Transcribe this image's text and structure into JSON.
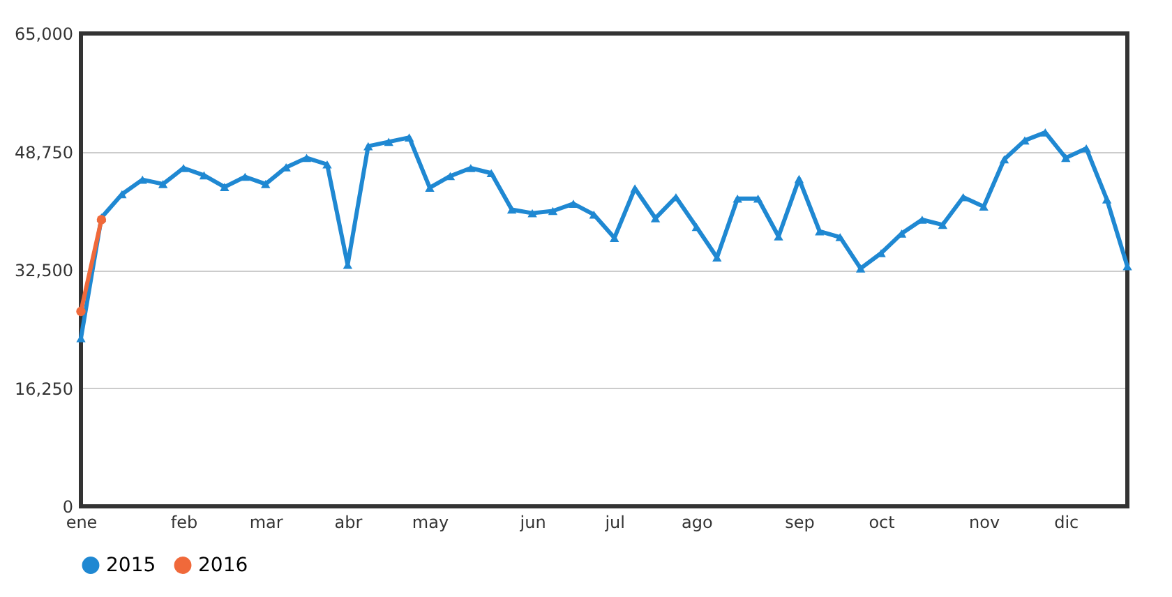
{
  "chart_data": {
    "type": "line",
    "categories": [
      "ene",
      null,
      null,
      null,
      null,
      "feb",
      null,
      null,
      null,
      "mar",
      null,
      null,
      null,
      "abr",
      null,
      null,
      null,
      "may",
      null,
      null,
      null,
      null,
      "jun",
      null,
      null,
      null,
      "jul",
      null,
      null,
      null,
      "ago",
      null,
      null,
      null,
      null,
      "sep",
      null,
      null,
      null,
      "oct",
      null,
      null,
      null,
      null,
      "nov",
      null,
      null,
      null,
      "dic",
      null,
      null,
      null
    ],
    "series": [
      {
        "name": "2015",
        "color": "#1f88d2",
        "marker": "triangle",
        "values": [
          23100,
          39700,
          42900,
          44900,
          44300,
          46500,
          45500,
          43900,
          45300,
          44300,
          46600,
          47900,
          47000,
          33200,
          49500,
          50100,
          50700,
          43800,
          45400,
          46500,
          45800,
          40800,
          40300,
          40600,
          41600,
          40100,
          36900,
          43700,
          39600,
          42500,
          38400,
          34200,
          42300,
          42300,
          37100,
          45000,
          37800,
          37000,
          32700,
          34800,
          37500,
          39400,
          38700,
          42500,
          41200,
          47700,
          50300,
          51400,
          47900,
          49200,
          42200,
          33000
        ]
      },
      {
        "name": "2016",
        "color": "#f0693a",
        "marker": "circle",
        "values": [
          26800,
          39400,
          null,
          null,
          null,
          null,
          null,
          null,
          null,
          null,
          null,
          null,
          null,
          null,
          null,
          null,
          null,
          null,
          null,
          null,
          null,
          null,
          null,
          null,
          null,
          null,
          null,
          null,
          null,
          null,
          null,
          null,
          null,
          null,
          null,
          null,
          null,
          null,
          null,
          null,
          null,
          null,
          null,
          null,
          null,
          null,
          null,
          null,
          null,
          null,
          null,
          null
        ]
      }
    ],
    "ylim": [
      0,
      65000
    ],
    "yticks": [
      0,
      {
        "value": 16250,
        "label": "16,250"
      },
      {
        "value": 32500,
        "label": "32,500"
      },
      {
        "value": 48750,
        "label": "48,750"
      },
      {
        "value": 65000,
        "label": "65,000"
      }
    ],
    "grid": "y",
    "legend": "bottom",
    "line_style": "solid"
  }
}
